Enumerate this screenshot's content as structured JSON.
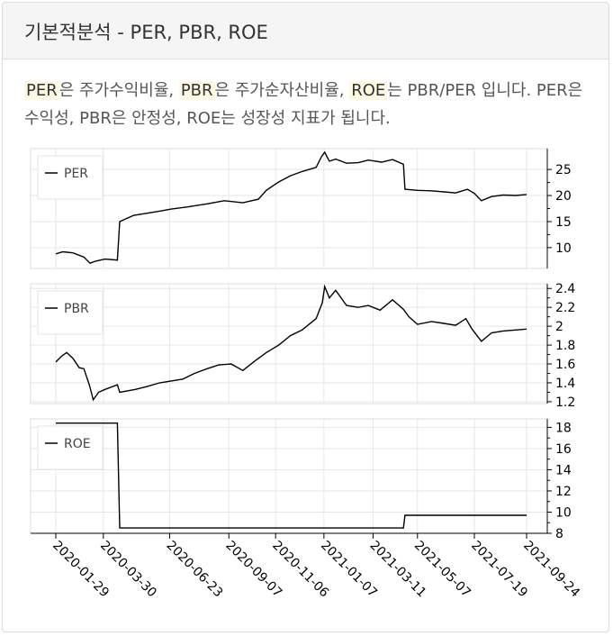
{
  "header": {
    "title": "기본적분석 - PER, PBR, ROE"
  },
  "description": {
    "term_per": "PER",
    "text_1": "은 주가수익비율, ",
    "term_pbr": "PBR",
    "text_2": "은 주가순자산비율, ",
    "term_roe": "ROE",
    "text_3": "는 PBR/PER 입니다. PER은 수익성, PBR은 안정성, ROE는 성장성 지표가 됩니다."
  },
  "chart_data": [
    {
      "type": "line",
      "legend": "PER",
      "legend_position": "top-left",
      "ylim": [
        6,
        29
      ],
      "yticks": [
        10,
        15,
        20,
        25
      ],
      "grid": true,
      "series": [
        {
          "name": "PER",
          "points": [
            [
              "2020-01-29",
              8.8
            ],
            [
              "2020-02-07",
              9.2
            ],
            [
              "2020-02-20",
              9.0
            ],
            [
              "2020-03-05",
              8.2
            ],
            [
              "2020-03-13",
              7.0
            ],
            [
              "2020-03-20",
              7.4
            ],
            [
              "2020-04-01",
              7.8
            ],
            [
              "2020-04-17",
              7.6
            ],
            [
              "2020-04-20",
              15.0
            ],
            [
              "2020-05-08",
              16.2
            ],
            [
              "2020-05-25",
              16.6
            ],
            [
              "2020-06-10",
              17.0
            ],
            [
              "2020-06-25",
              17.4
            ],
            [
              "2020-07-15",
              17.8
            ],
            [
              "2020-08-10",
              18.4
            ],
            [
              "2020-09-01",
              19.0
            ],
            [
              "2020-09-25",
              18.6
            ],
            [
              "2020-10-15",
              19.3
            ],
            [
              "2020-10-25",
              21.0
            ],
            [
              "2020-11-10",
              22.6
            ],
            [
              "2020-11-25",
              23.8
            ],
            [
              "2020-12-10",
              24.6
            ],
            [
              "2020-12-28",
              25.4
            ],
            [
              "2021-01-04",
              27.5
            ],
            [
              "2021-01-08",
              28.3
            ],
            [
              "2021-01-14",
              26.6
            ],
            [
              "2021-01-22",
              27.0
            ],
            [
              "2021-02-05",
              26.2
            ],
            [
              "2021-02-20",
              26.3
            ],
            [
              "2021-03-05",
              26.8
            ],
            [
              "2021-03-22",
              26.4
            ],
            [
              "2021-04-05",
              26.9
            ],
            [
              "2021-04-19",
              26.0
            ],
            [
              "2021-04-21",
              21.2
            ],
            [
              "2021-05-07",
              21.0
            ],
            [
              "2021-05-25",
              20.9
            ],
            [
              "2021-06-10",
              20.7
            ],
            [
              "2021-06-25",
              20.5
            ],
            [
              "2021-07-10",
              21.2
            ],
            [
              "2021-07-19",
              20.4
            ],
            [
              "2021-07-28",
              19.0
            ],
            [
              "2021-08-10",
              19.8
            ],
            [
              "2021-08-25",
              20.1
            ],
            [
              "2021-09-10",
              20.0
            ],
            [
              "2021-09-24",
              20.2
            ]
          ]
        }
      ]
    },
    {
      "type": "line",
      "legend": "PBR",
      "legend_position": "top-left",
      "ylim": [
        1.18,
        2.45
      ],
      "yticks": [
        1.2,
        1.4,
        1.6,
        1.8,
        2,
        2.2,
        2.4
      ],
      "grid": true,
      "series": [
        {
          "name": "PBR",
          "points": [
            [
              "2020-01-29",
              1.62
            ],
            [
              "2020-02-05",
              1.68
            ],
            [
              "2020-02-12",
              1.72
            ],
            [
              "2020-02-20",
              1.66
            ],
            [
              "2020-02-28",
              1.56
            ],
            [
              "2020-03-05",
              1.55
            ],
            [
              "2020-03-12",
              1.38
            ],
            [
              "2020-03-17",
              1.22
            ],
            [
              "2020-03-24",
              1.3
            ],
            [
              "2020-04-01",
              1.33
            ],
            [
              "2020-04-17",
              1.38
            ],
            [
              "2020-04-20",
              1.3
            ],
            [
              "2020-05-10",
              1.33
            ],
            [
              "2020-05-25",
              1.36
            ],
            [
              "2020-06-10",
              1.4
            ],
            [
              "2020-06-25",
              1.42
            ],
            [
              "2020-07-10",
              1.44
            ],
            [
              "2020-07-25",
              1.5
            ],
            [
              "2020-08-10",
              1.55
            ],
            [
              "2020-08-25",
              1.59
            ],
            [
              "2020-09-10",
              1.6
            ],
            [
              "2020-09-25",
              1.53
            ],
            [
              "2020-10-10",
              1.63
            ],
            [
              "2020-10-25",
              1.72
            ],
            [
              "2020-11-10",
              1.8
            ],
            [
              "2020-11-25",
              1.9
            ],
            [
              "2020-12-10",
              1.96
            ],
            [
              "2020-12-28",
              2.08
            ],
            [
              "2021-01-05",
              2.25
            ],
            [
              "2021-01-08",
              2.42
            ],
            [
              "2021-01-14",
              2.3
            ],
            [
              "2021-01-22",
              2.38
            ],
            [
              "2021-02-05",
              2.22
            ],
            [
              "2021-02-20",
              2.2
            ],
            [
              "2021-03-05",
              2.22
            ],
            [
              "2021-03-20",
              2.17
            ],
            [
              "2021-04-05",
              2.28
            ],
            [
              "2021-04-19",
              2.18
            ],
            [
              "2021-04-26",
              2.1
            ],
            [
              "2021-05-07",
              2.02
            ],
            [
              "2021-05-25",
              2.05
            ],
            [
              "2021-06-10",
              2.03
            ],
            [
              "2021-06-25",
              2.01
            ],
            [
              "2021-07-08",
              2.08
            ],
            [
              "2021-07-16",
              1.97
            ],
            [
              "2021-07-28",
              1.84
            ],
            [
              "2021-08-10",
              1.93
            ],
            [
              "2021-08-25",
              1.95
            ],
            [
              "2021-09-10",
              1.96
            ],
            [
              "2021-09-24",
              1.97
            ]
          ]
        }
      ]
    },
    {
      "type": "line",
      "legend": "ROE",
      "legend_position": "top-left",
      "ylim": [
        8,
        18.8
      ],
      "yticks": [
        8,
        10,
        12,
        14,
        16,
        18
      ],
      "grid": true,
      "series": [
        {
          "name": "ROE",
          "points": [
            [
              "2020-01-29",
              18.4
            ],
            [
              "2020-04-17",
              18.4
            ],
            [
              "2020-04-20",
              8.5
            ],
            [
              "2021-04-19",
              8.5
            ],
            [
              "2021-04-21",
              9.7
            ],
            [
              "2021-09-24",
              9.7
            ]
          ]
        }
      ]
    }
  ],
  "x_axis": {
    "ticks": [
      "2020-01-29",
      "2020-03-30",
      "2020-06-23",
      "2020-09-07",
      "2020-11-06",
      "2021-01-07",
      "2021-03-11",
      "2021-05-07",
      "2021-07-19",
      "2021-09-24"
    ]
  }
}
